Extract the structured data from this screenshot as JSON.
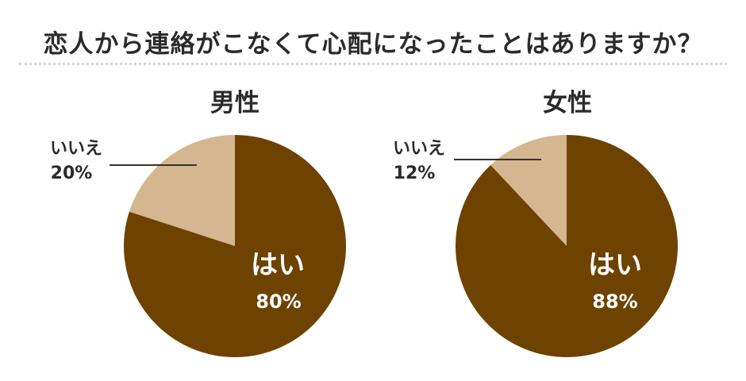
{
  "title": "恋人から連絡がこなくて心配になったことはありますか？",
  "colors": {
    "yes": "#6e4200",
    "no": "#d4b690",
    "leader": "#333333"
  },
  "chart_data": [
    {
      "type": "pie",
      "title": "男性",
      "slices": [
        {
          "label": "はい",
          "value": 80,
          "display": "80%",
          "color": "#6e4200"
        },
        {
          "label": "いいえ",
          "value": 20,
          "display": "20%",
          "color": "#d4b690"
        }
      ]
    },
    {
      "type": "pie",
      "title": "女性",
      "slices": [
        {
          "label": "はい",
          "value": 88,
          "display": "88%",
          "color": "#6e4200"
        },
        {
          "label": "いいえ",
          "value": 12,
          "display": "12%",
          "color": "#d4b690"
        }
      ]
    }
  ]
}
